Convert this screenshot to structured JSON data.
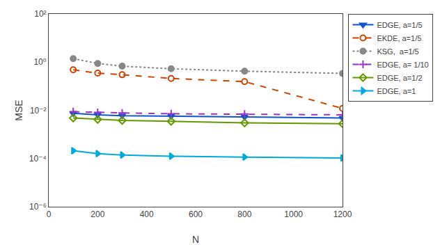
{
  "chart_data": {
    "type": "line",
    "x": [
      100,
      200,
      300,
      500,
      800,
      1200
    ],
    "series": [
      {
        "name": "EDGE, a=1/5",
        "color": "#1155cc",
        "marker": "triangle-down",
        "line_style": "solid",
        "values": [
          0.0075,
          0.0065,
          0.006,
          0.0057,
          0.0053,
          0.0048
        ]
      },
      {
        "name": "EKDE, a=1/5",
        "color": "#cc4400",
        "marker": "circle-open",
        "line_style": "dash",
        "values": [
          0.48,
          0.35,
          0.3,
          0.21,
          0.155,
          0.012
        ]
      },
      {
        "name": "KSG,  a=1/5",
        "color": "#888888",
        "marker": "circle",
        "line_style": "dot",
        "values": [
          1.4,
          0.88,
          0.68,
          0.53,
          0.42,
          0.34
        ]
      },
      {
        "name": "EDGE, a= 1/10",
        "color": "#9933cc",
        "marker": "plus",
        "line_style": "dash",
        "values": [
          0.0088,
          0.0082,
          0.0078,
          0.0072,
          0.007,
          0.0065
        ]
      },
      {
        "name": "EDGE, a=1/2",
        "color": "#669900",
        "marker": "diamond-open",
        "line_style": "solid",
        "values": [
          0.0048,
          0.0042,
          0.0038,
          0.0035,
          0.003,
          0.0028
        ]
      },
      {
        "name": "EDGE, a=1",
        "color": "#00aadd",
        "marker": "triangle-right",
        "line_style": "solid",
        "values": [
          0.00021,
          0.00016,
          0.00014,
          0.000125,
          0.000115,
          0.000105
        ]
      }
    ],
    "xlabel": "N",
    "ylabel": "MSE",
    "xlim": [
      0,
      1200
    ],
    "xticks": [
      0,
      200,
      400,
      600,
      800,
      1000,
      1200
    ],
    "ylim": [
      1e-06,
      100
    ],
    "yticks": [
      {
        "value": 1e-06,
        "label": "10⁻⁶"
      },
      {
        "value": 0.0001,
        "label": "10⁻⁴"
      },
      {
        "value": 0.01,
        "label": "10⁻²"
      },
      {
        "value": 1,
        "label": "10⁰"
      },
      {
        "value": 100,
        "label": "10²"
      }
    ],
    "log": "y",
    "grid": false,
    "legend": "upper right"
  }
}
